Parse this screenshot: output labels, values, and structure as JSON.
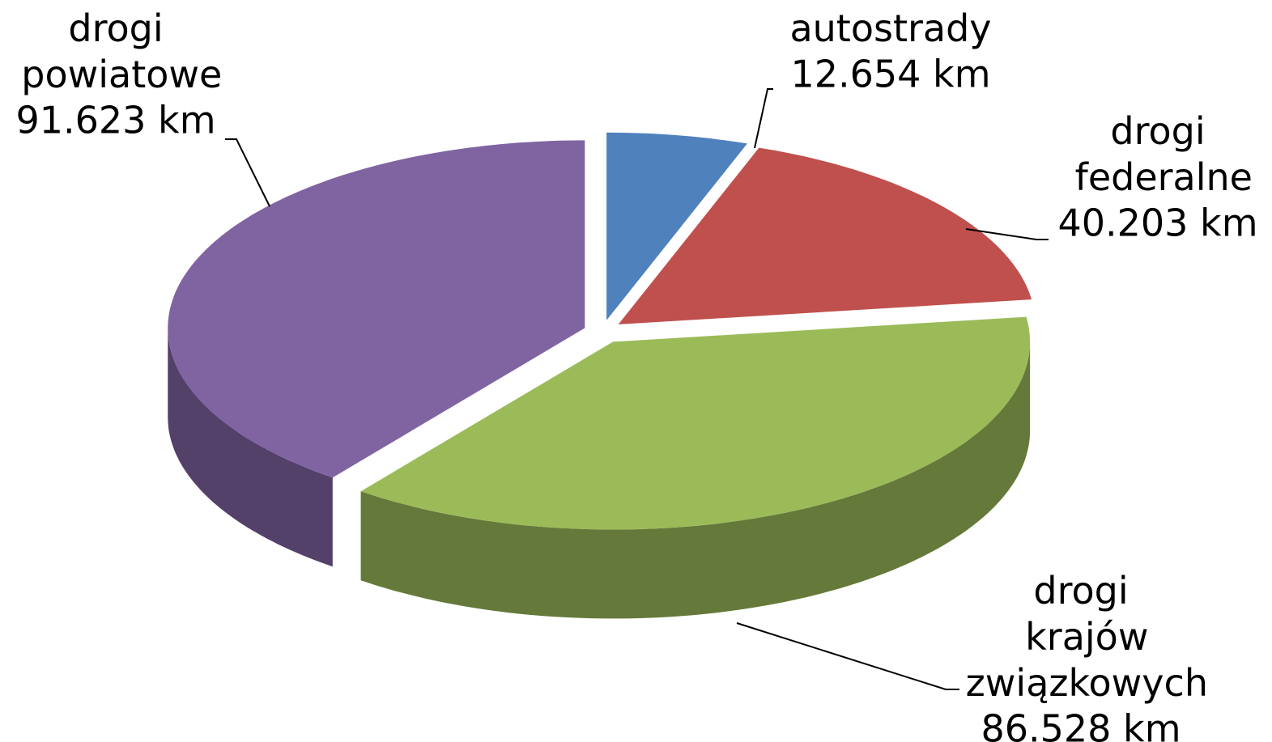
{
  "chart_data": {
    "type": "pie",
    "categories": [
      "autostrady",
      "drogi federalne",
      "drogi krajów związkowych",
      "drogi powiatowe"
    ],
    "values": [
      12654,
      40203,
      86528,
      91623
    ],
    "value_labels": [
      "12.654 km",
      "40.203 km",
      "86.528 km",
      "91.623 km"
    ],
    "colors": [
      "#4f81bd",
      "#c0504d",
      "#9bbb59",
      "#8064a2"
    ]
  }
}
